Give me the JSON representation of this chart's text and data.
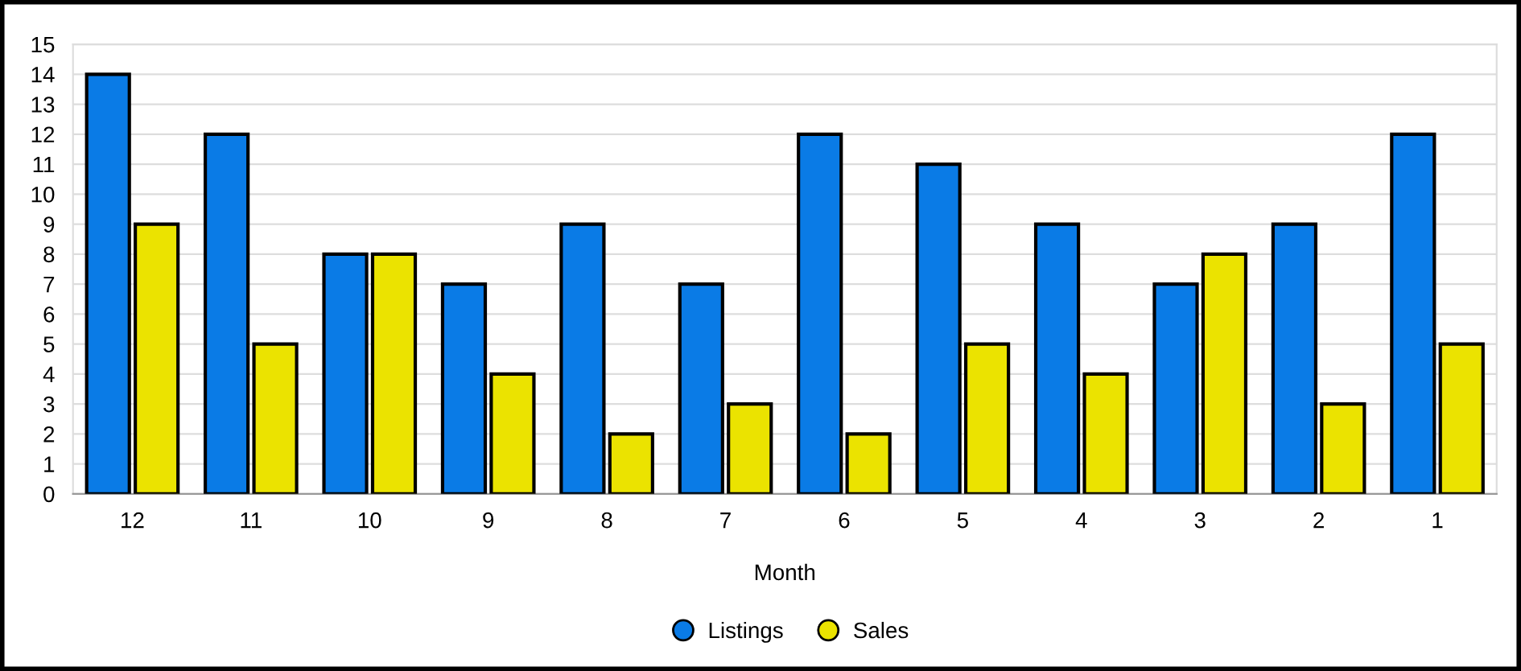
{
  "chart_data": {
    "type": "bar",
    "xlabel": "Month",
    "categories": [
      "12",
      "11",
      "10",
      "9",
      "8",
      "7",
      "6",
      "5",
      "4",
      "3",
      "2",
      "1"
    ],
    "series": [
      {
        "name": "Listings",
        "color": "#0a7be6",
        "values": [
          14,
          12,
          8,
          7,
          9,
          7,
          12,
          11,
          9,
          7,
          9,
          12
        ]
      },
      {
        "name": "Sales",
        "color": "#ebe300",
        "values": [
          9,
          5,
          8,
          4,
          2,
          3,
          2,
          5,
          4,
          8,
          3,
          5
        ]
      }
    ],
    "ylim": [
      0,
      15
    ],
    "yticks": [
      0,
      1,
      2,
      3,
      4,
      5,
      6,
      7,
      8,
      9,
      10,
      11,
      12,
      13,
      14,
      15
    ],
    "grid": "y",
    "legend": "bottom"
  }
}
